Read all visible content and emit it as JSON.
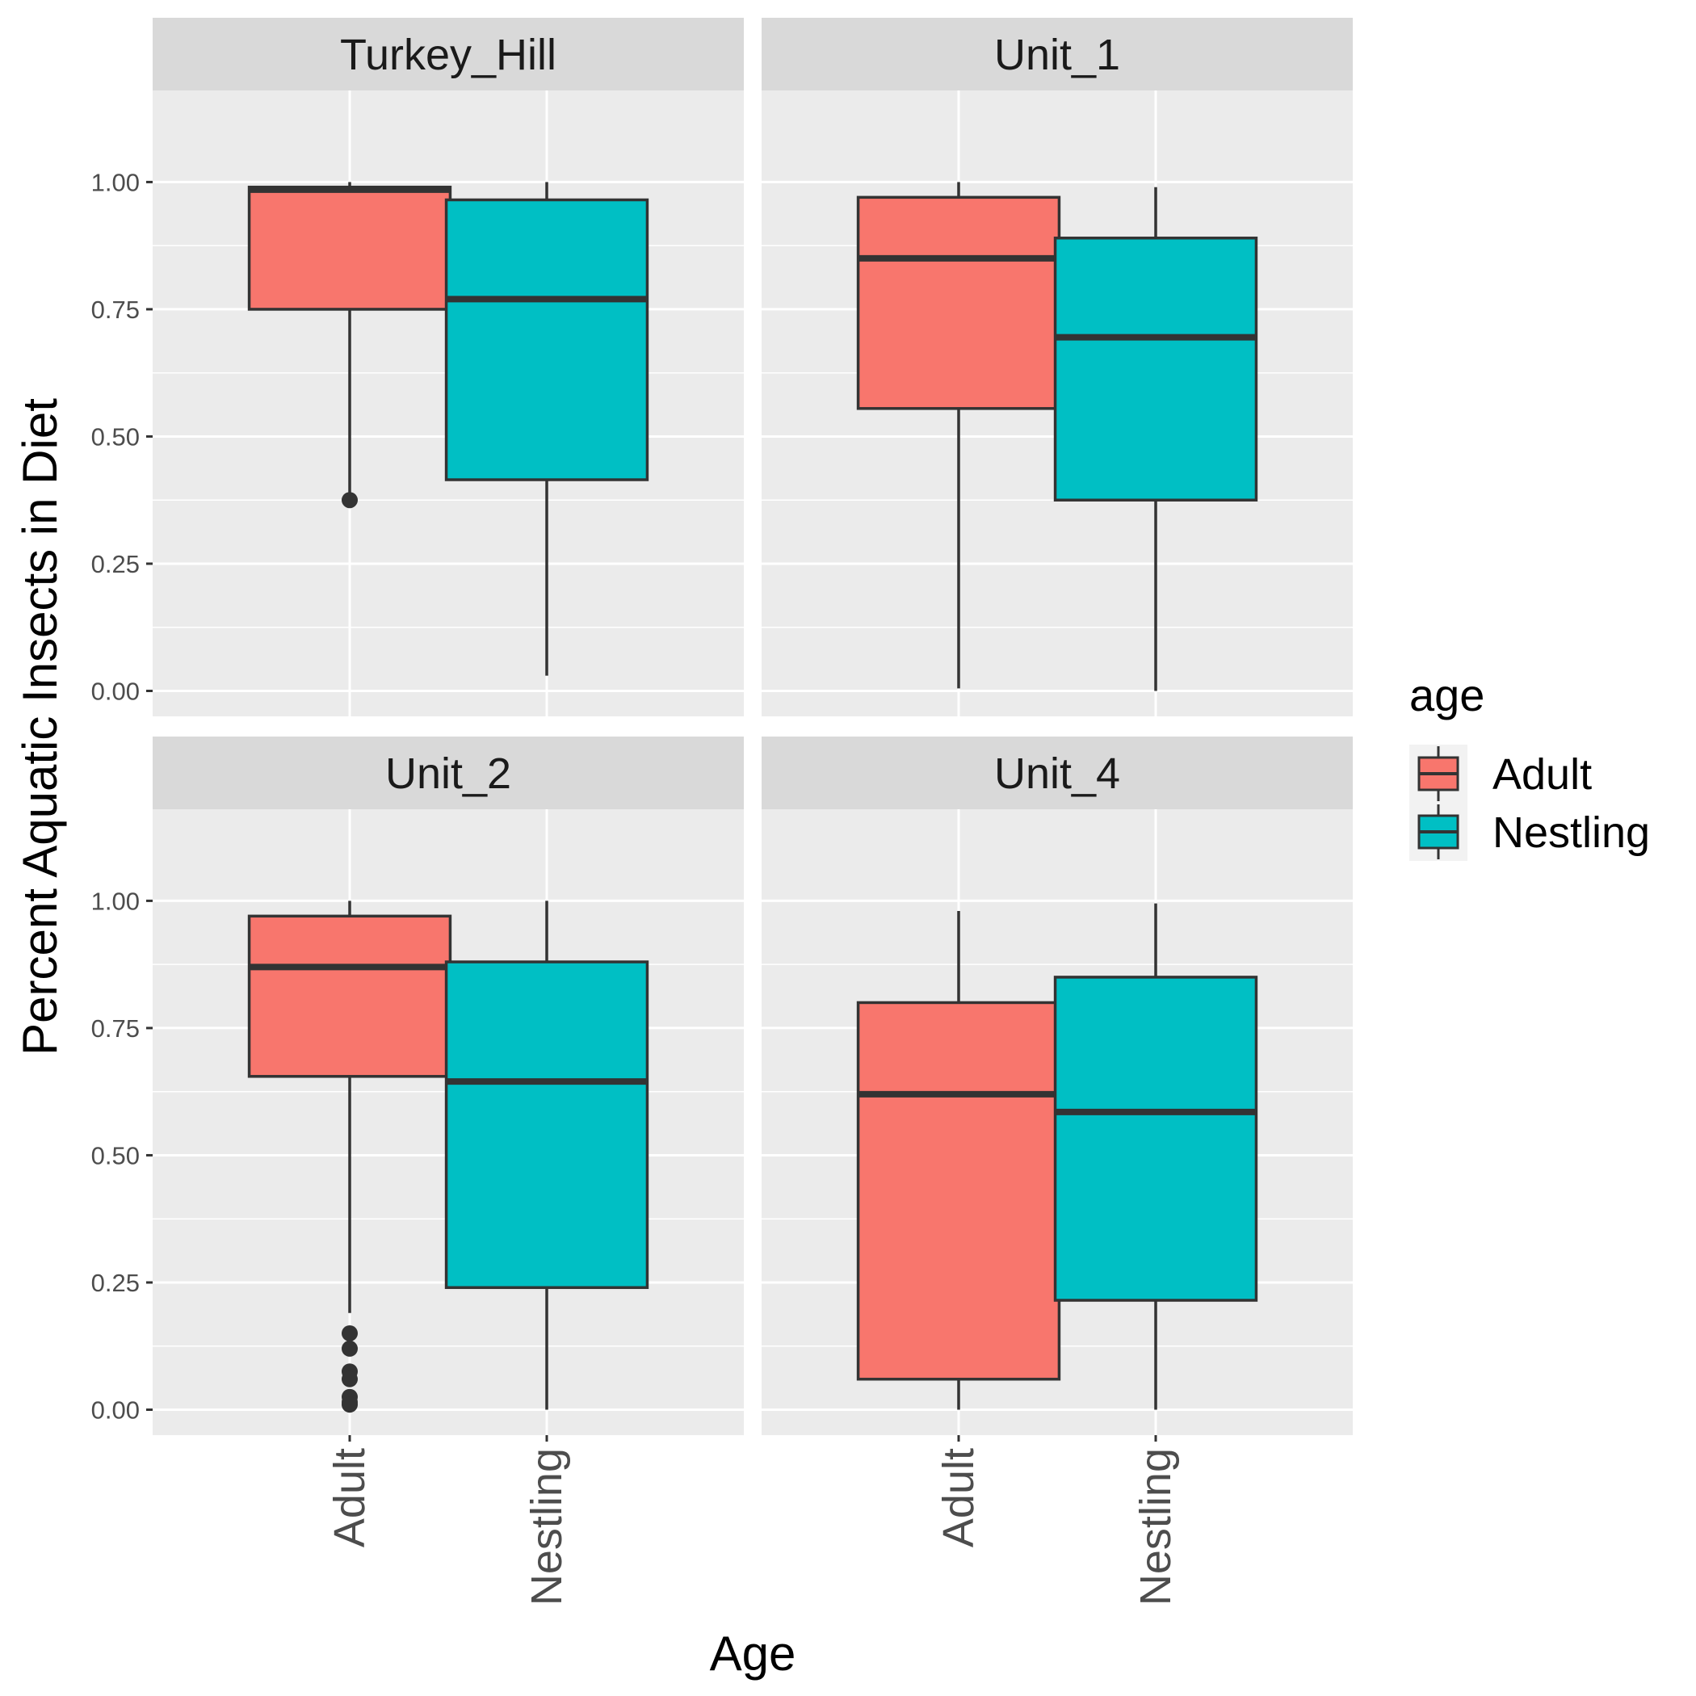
{
  "chart_data": {
    "type": "boxplot",
    "xlabel": "Age",
    "ylabel": "Percent Aquatic Insects in Diet",
    "ylim": [
      -0.05,
      1.18
    ],
    "yticks": [
      "0.00",
      "0.25",
      "0.50",
      "0.75",
      "1.00"
    ],
    "ytick_values": [
      0,
      0.25,
      0.5,
      0.75,
      1.0
    ],
    "categories": [
      "Adult",
      "Nestling"
    ],
    "legend": {
      "title": "age",
      "position": "right",
      "items": [
        {
          "label": "Adult",
          "color": "#F8766D"
        },
        {
          "label": "Nestling",
          "color": "#00BFC4"
        }
      ]
    },
    "grid": true,
    "facets": [
      {
        "name": "Turkey_Hill",
        "boxes": [
          {
            "group": "Adult",
            "whisker_low": 0.39,
            "q1": 0.75,
            "median": 0.985,
            "q3": 0.99,
            "whisker_high": 1.0,
            "outliers": [
              0.375
            ]
          },
          {
            "group": "Nestling",
            "whisker_low": 0.03,
            "q1": 0.415,
            "median": 0.77,
            "q3": 0.965,
            "whisker_high": 1.0,
            "outliers": []
          }
        ]
      },
      {
        "name": "Unit_1",
        "boxes": [
          {
            "group": "Adult",
            "whisker_low": 0.005,
            "q1": 0.555,
            "median": 0.85,
            "q3": 0.97,
            "whisker_high": 1.0,
            "outliers": []
          },
          {
            "group": "Nestling",
            "whisker_low": 0.0,
            "q1": 0.375,
            "median": 0.695,
            "q3": 0.89,
            "whisker_high": 0.99,
            "outliers": []
          }
        ]
      },
      {
        "name": "Unit_2",
        "boxes": [
          {
            "group": "Adult",
            "whisker_low": 0.19,
            "q1": 0.655,
            "median": 0.87,
            "q3": 0.97,
            "whisker_high": 1.0,
            "outliers": [
              0.15,
              0.12,
              0.075,
              0.06,
              0.025,
              0.015,
              0.01
            ]
          },
          {
            "group": "Nestling",
            "whisker_low": 0.0,
            "q1": 0.24,
            "median": 0.645,
            "q3": 0.88,
            "whisker_high": 1.0,
            "outliers": []
          }
        ]
      },
      {
        "name": "Unit_4",
        "boxes": [
          {
            "group": "Adult",
            "whisker_low": 0.0,
            "q1": 0.06,
            "median": 0.62,
            "q3": 0.8,
            "whisker_high": 0.98,
            "outliers": []
          },
          {
            "group": "Nestling",
            "whisker_low": 0.0,
            "q1": 0.215,
            "median": 0.585,
            "q3": 0.85,
            "whisker_high": 0.995,
            "outliers": []
          }
        ]
      }
    ]
  }
}
